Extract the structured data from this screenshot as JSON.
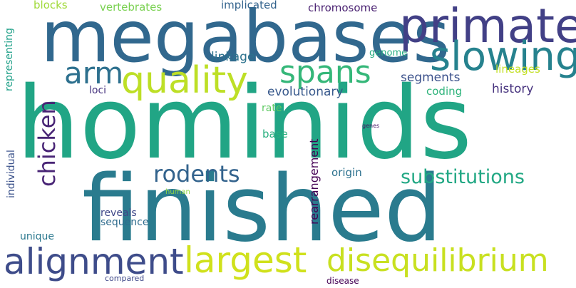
{
  "words": [
    {
      "text": "hominids",
      "color": "#21a585"
    },
    {
      "text": "finished",
      "color": "#2a7b8e"
    },
    {
      "text": "megabases",
      "color": "#31688e"
    },
    {
      "text": "primate",
      "color": "#424086"
    },
    {
      "text": "slowing",
      "color": "#26828e"
    },
    {
      "text": "alignment",
      "color": "#3e4c8a"
    },
    {
      "text": "largest",
      "color": "#d0e11c"
    },
    {
      "text": "disequilibrium",
      "color": "#c8e020"
    },
    {
      "text": "quality",
      "color": "#bddf26"
    },
    {
      "text": "spans",
      "color": "#35b779"
    },
    {
      "text": "arm",
      "color": "#2d708e"
    },
    {
      "text": "rodents",
      "color": "#33638d"
    },
    {
      "text": "substitutions",
      "color": "#22a884"
    },
    {
      "text": "chicken",
      "color": "#482475"
    },
    {
      "text": "evolutionary",
      "color": "#38598c"
    },
    {
      "text": "history",
      "color": "#46327e"
    },
    {
      "text": "segments",
      "color": "#3b518b"
    },
    {
      "text": "linkage",
      "color": "#2c728e"
    },
    {
      "text": "coding",
      "color": "#2fb47c"
    },
    {
      "text": "lineages",
      "color": "#c2df23"
    },
    {
      "text": "genome",
      "color": "#27ad81"
    },
    {
      "text": "chromosome",
      "color": "#481f70"
    },
    {
      "text": "implicated",
      "color": "#33638d"
    },
    {
      "text": "vertebrates",
      "color": "#7ad151"
    },
    {
      "text": "blocks",
      "color": "#a0da39"
    },
    {
      "text": "loci",
      "color": "#46337f"
    },
    {
      "text": "rate",
      "color": "#5ec962"
    },
    {
      "text": "base",
      "color": "#29af7f"
    },
    {
      "text": "origin",
      "color": "#2c718e"
    },
    {
      "text": "rearrangement",
      "color": "#440154"
    },
    {
      "text": "reveals",
      "color": "#3f4788"
    },
    {
      "text": "sequence",
      "color": "#2f6c8e"
    },
    {
      "text": "unique",
      "color": "#2a788e"
    },
    {
      "text": "individual",
      "color": "#3b528b"
    },
    {
      "text": "representing",
      "color": "#1fa088"
    },
    {
      "text": "human",
      "color": "#8fd744"
    },
    {
      "text": "compared",
      "color": "#3f4889"
    },
    {
      "text": "disease",
      "color": "#440154"
    },
    {
      "text": "genes",
      "color": "#471365"
    }
  ]
}
